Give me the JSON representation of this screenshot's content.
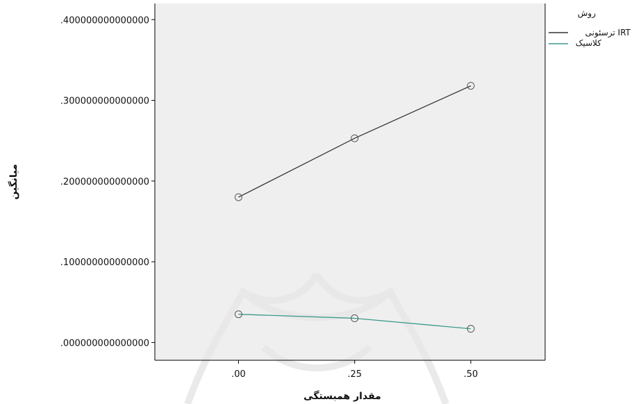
{
  "chart_data": {
    "type": "line",
    "xlabel": "مقدار همبستگی",
    "ylabel": "میانگین",
    "x": [
      0.0,
      0.25,
      0.5
    ],
    "x_tick_labels": [
      ".00",
      ".25",
      ".50"
    ],
    "xlim": [
      -0.18,
      0.66
    ],
    "ylim": [
      -0.022,
      0.42
    ],
    "y_ticks": [
      0.0,
      0.1,
      0.2,
      0.3,
      0.4
    ],
    "y_tick_labels": [
      ".000000000000000",
      ".100000000000000",
      ".200000000000000",
      ".300000000000000",
      ".400000000000000"
    ],
    "grid": false,
    "legend": {
      "title": "روش",
      "placement": "right",
      "entries": [
        "ترسئونی IRT",
        "کلاسیک"
      ]
    },
    "series": [
      {
        "name": "ترسئونی IRT",
        "values": [
          0.18,
          0.253,
          0.318
        ],
        "color": "#333333",
        "marker": "circle"
      },
      {
        "name": "کلاسیک",
        "values": [
          0.035,
          0.03,
          0.017
        ],
        "color": "#3a9a8a",
        "marker": "circle"
      }
    ],
    "colors": {
      "plot_bg": "#efefef",
      "axis": "#000000"
    }
  }
}
